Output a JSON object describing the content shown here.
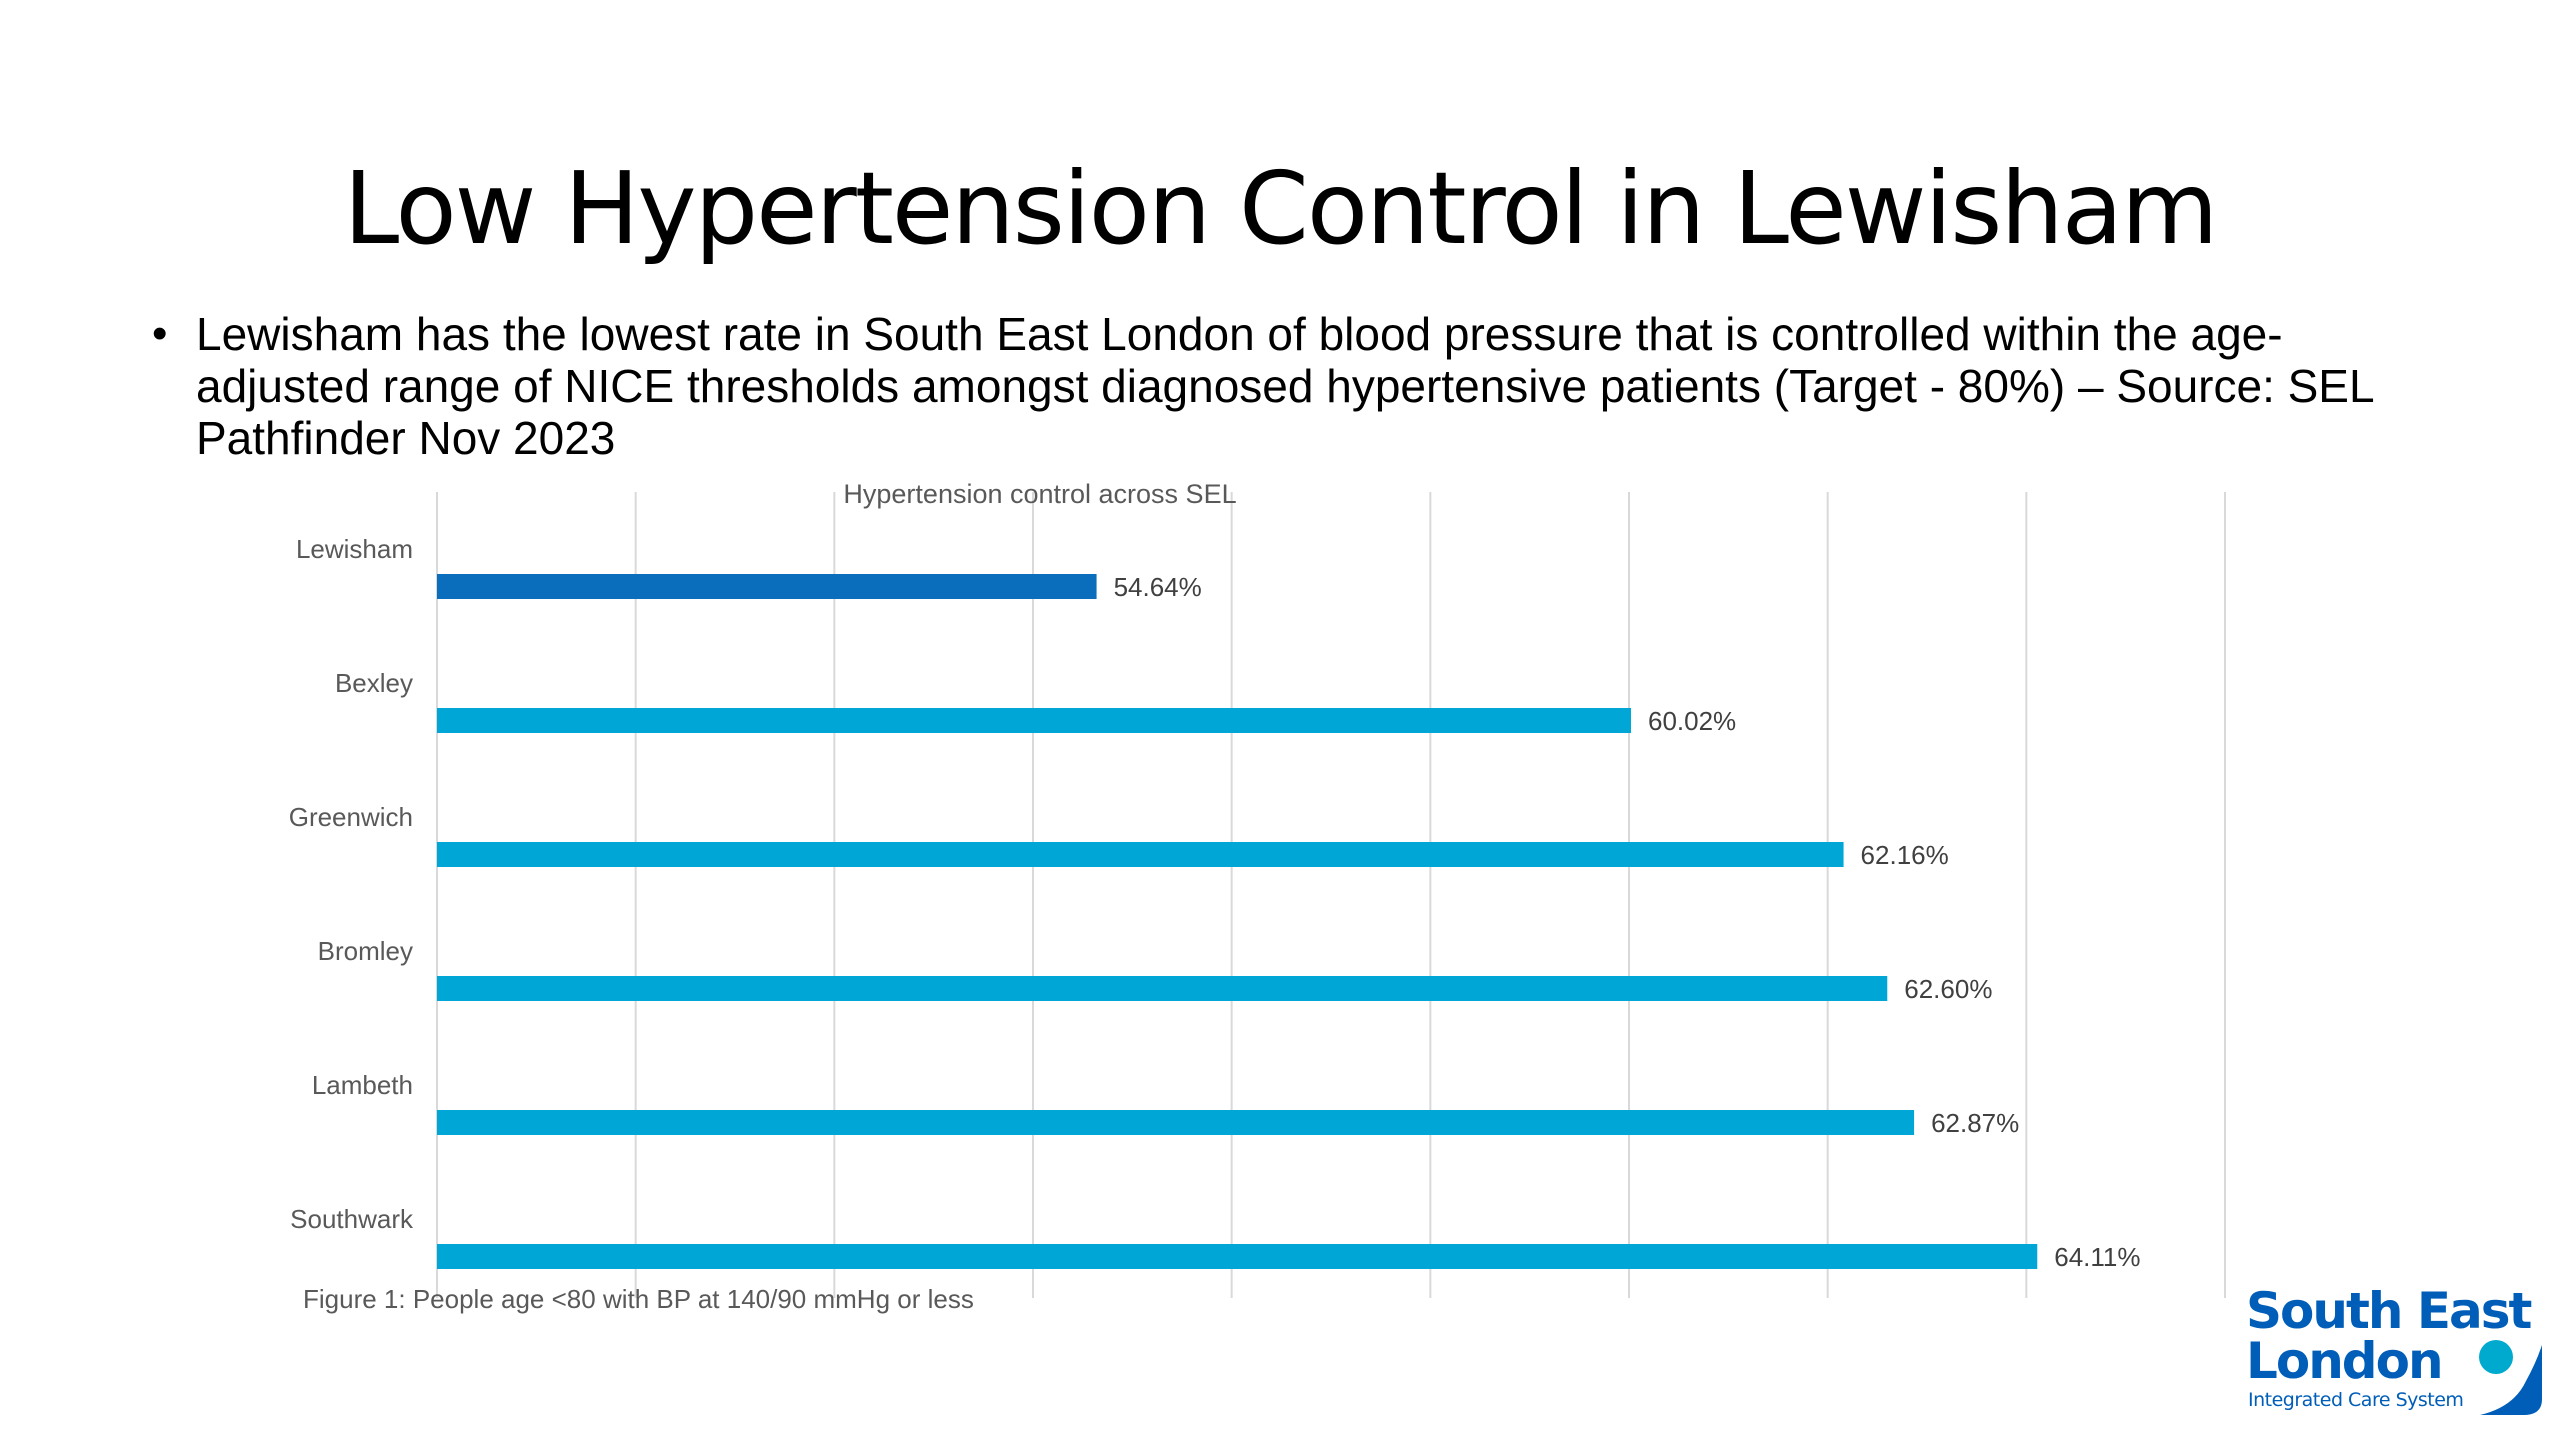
{
  "slide": {
    "title": "Low Hypertension Control in Lewisham",
    "bullet": "Lewisham has the lowest rate in South East London of blood pressure that is controlled within the age-adjusted range of NICE thresholds amongst diagnosed hypertensive patients (Target - 80%) – Source: SEL Pathfinder Nov 2023"
  },
  "chart_data": {
    "type": "bar",
    "orientation": "horizontal",
    "title": "Hypertension control across SEL",
    "caption": "Figure 1: People age <80 with BP at 140/90 mmHg or less",
    "categories": [
      "Lewisham",
      "Bexley",
      "Greenwich",
      "Bromley",
      "Lambeth",
      "Southwark"
    ],
    "values": [
      54.64,
      60.02,
      62.16,
      62.6,
      62.87,
      64.11
    ],
    "data_labels": [
      "54.64%",
      "60.02%",
      "62.16%",
      "62.60%",
      "62.87%",
      "64.11%"
    ],
    "xlim": [
      48,
      66
    ],
    "grid": true,
    "colors": {
      "highlight": "#0A6EBD",
      "bar": "#00A6D6",
      "grid": "#D9D9D9"
    }
  },
  "logo": {
    "line1": "South East",
    "line2": "London",
    "sub": "Integrated Care System",
    "color": "#005EB8",
    "accent": "#00A9CE"
  }
}
